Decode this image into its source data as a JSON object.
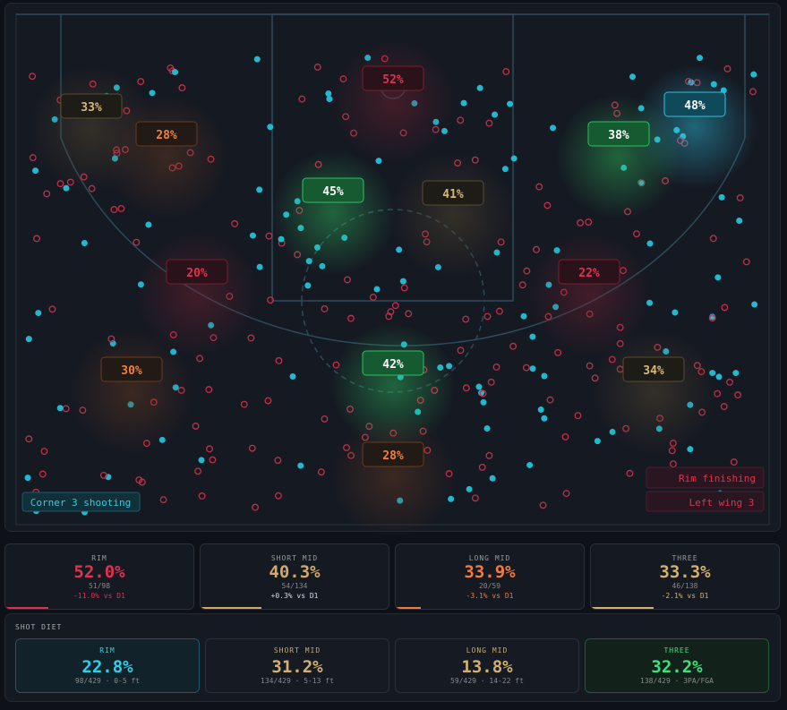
{
  "court": {
    "zones": [
      "33%",
      "28%",
      "52%",
      "45%",
      "41%",
      "48%",
      "38%",
      "20%",
      "22%",
      "30%",
      "42%",
      "34%",
      "28%"
    ],
    "legend": [
      "Rim finishing",
      "Left wing 3"
    ],
    "badge": "Corner 3 shooting"
  },
  "stats": [
    {
      "label": "RIM",
      "value": "52.0%",
      "count": "51/98",
      "delta": "-11.0% vs D1"
    },
    {
      "label": "SHORT MID",
      "value": "40.3%",
      "count": "54/134",
      "delta": "+0.3% vs D1"
    },
    {
      "label": "LONG MID",
      "value": "33.9%",
      "count": "20/59",
      "delta": "-3.1% vs D1"
    },
    {
      "label": "THREE",
      "value": "33.3%",
      "count": "46/138",
      "delta": "-2.1% vs D1"
    }
  ],
  "diet": {
    "title": "SHOT DIET",
    "cards": [
      {
        "label": "RIM",
        "value": "22.8%",
        "detail": "98/429 · 0-5 ft"
      },
      {
        "label": "SHORT MID",
        "value": "31.2%",
        "detail": "134/429 · 5-13 ft"
      },
      {
        "label": "LONG MID",
        "value": "13.8%",
        "detail": "59/429 · 14-22 ft"
      },
      {
        "label": "THREE",
        "value": "32.2%",
        "detail": "138/429 · 3PA/FGA"
      }
    ]
  }
}
